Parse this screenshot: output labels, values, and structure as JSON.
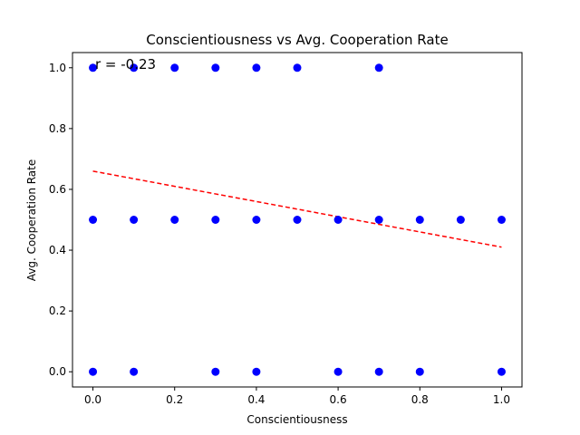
{
  "chart_data": {
    "type": "scatter",
    "title": "Conscientiousness vs Avg. Cooperation Rate",
    "xlabel": "Conscientiousness",
    "ylabel": "Avg. Cooperation Rate",
    "xlim": [
      -0.05,
      1.05
    ],
    "ylim": [
      -0.05,
      1.05
    ],
    "xticks": [
      0.0,
      0.2,
      0.4,
      0.6,
      0.8,
      1.0
    ],
    "xtick_labels": [
      "0.0",
      "0.2",
      "0.4",
      "0.6",
      "0.8",
      "1.0"
    ],
    "yticks": [
      0.0,
      0.2,
      0.4,
      0.6,
      0.8,
      1.0
    ],
    "ytick_labels": [
      "0.0",
      "0.2",
      "0.4",
      "0.6",
      "0.8",
      "1.0"
    ],
    "grid": false,
    "annotation": "r = -0.23",
    "point_color": "#0000ff",
    "trend_color": "#ff0000",
    "points": [
      [
        0.0,
        1.0
      ],
      [
        0.1,
        1.0
      ],
      [
        0.2,
        1.0
      ],
      [
        0.3,
        1.0
      ],
      [
        0.4,
        1.0
      ],
      [
        0.5,
        1.0
      ],
      [
        0.7,
        1.0
      ],
      [
        0.0,
        0.5
      ],
      [
        0.1,
        0.5
      ],
      [
        0.2,
        0.5
      ],
      [
        0.3,
        0.5
      ],
      [
        0.4,
        0.5
      ],
      [
        0.5,
        0.5
      ],
      [
        0.6,
        0.5
      ],
      [
        0.7,
        0.5
      ],
      [
        0.8,
        0.5
      ],
      [
        0.9,
        0.5
      ],
      [
        1.0,
        0.5
      ],
      [
        0.0,
        0.0
      ],
      [
        0.1,
        0.0
      ],
      [
        0.3,
        0.0
      ],
      [
        0.4,
        0.0
      ],
      [
        0.6,
        0.0
      ],
      [
        0.7,
        0.0
      ],
      [
        0.8,
        0.0
      ],
      [
        1.0,
        0.0
      ]
    ],
    "trend_line": {
      "x": [
        0.0,
        1.0
      ],
      "y": [
        0.66,
        0.41
      ],
      "style": "dashed"
    }
  }
}
